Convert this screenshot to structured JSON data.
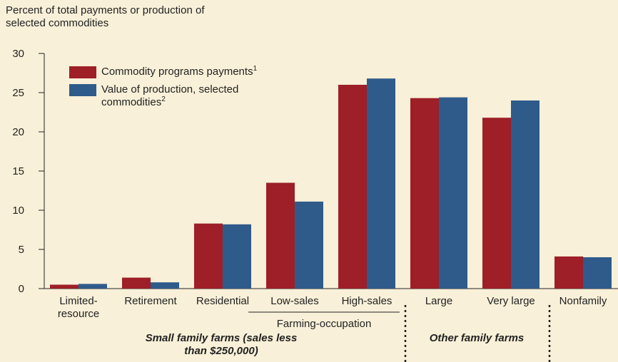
{
  "chart_data": {
    "type": "bar",
    "y_label": "Percent of total payments or production of selected commodities",
    "categories": [
      "Limited-resource",
      "Retirement",
      "Residential",
      "Low-sales",
      "High-sales",
      "Large",
      "Very large",
      "Nonfamily"
    ],
    "series": [
      {
        "name": "Commodity programs payments",
        "note": "1",
        "color": "#9e1f27",
        "values": [
          0.5,
          1.4,
          8.3,
          13.5,
          26.0,
          24.3,
          21.8,
          4.1
        ]
      },
      {
        "name": "Value of production, selected commodities",
        "note": "2",
        "color": "#2f5b8b",
        "values": [
          0.6,
          0.8,
          8.2,
          11.1,
          26.8,
          24.4,
          24.0,
          4.0
        ]
      }
    ],
    "ylim": [
      0,
      30
    ],
    "yticks": [
      0,
      5,
      10,
      15,
      20,
      25,
      30
    ],
    "groups": {
      "farming_occupation": "Farming-occupation",
      "small_family": "Small family farms (sales less than $250,000)",
      "other_family": "Other family farms"
    }
  }
}
